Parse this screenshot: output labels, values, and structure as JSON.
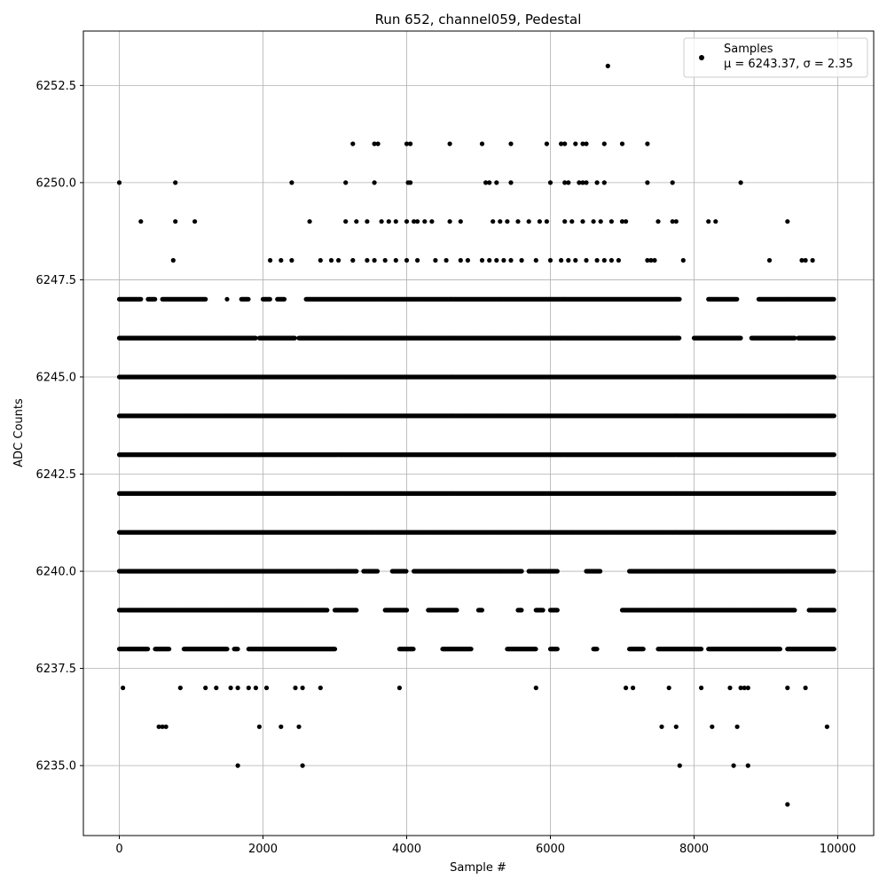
{
  "chart_data": {
    "type": "scatter",
    "title": "Run 652, channel059, Pedestal",
    "xlabel": "Sample #",
    "ylabel": "ADC Counts",
    "xlim": [
      -500,
      10500
    ],
    "ylim": [
      6233.2,
      6253.9
    ],
    "x_ticks": [
      0,
      2000,
      4000,
      6000,
      8000,
      10000
    ],
    "x_tick_labels": [
      "0",
      "2000",
      "4000",
      "6000",
      "8000",
      "10000"
    ],
    "y_ticks": [
      6235.0,
      6237.5,
      6240.0,
      6242.5,
      6245.0,
      6247.5,
      6250.0,
      6252.5
    ],
    "y_tick_labels": [
      "6235.0",
      "6237.5",
      "6240.0",
      "6242.5",
      "6245.0",
      "6247.5",
      "6250.0",
      "6252.5"
    ],
    "grid": true,
    "legend": {
      "placement": "top-right",
      "entries": [
        {
          "name": "Samples",
          "stats_text": "μ = 6243.37, σ = 2.35"
        }
      ]
    },
    "series": [
      {
        "name": "Samples",
        "color": "#000000",
        "marker": "circle",
        "x_range": [
          0,
          9950
        ],
        "bands": [
          {
            "y": 6247,
            "segments": [
              [
                0,
                300
              ],
              [
                400,
                500
              ],
              [
                600,
                1200
              ],
              [
                1500,
                1500
              ],
              [
                1700,
                1800
              ],
              [
                2000,
                2100
              ],
              [
                2200,
                2300
              ],
              [
                2600,
                7800
              ],
              [
                8200,
                8600
              ],
              [
                8900,
                9950
              ]
            ]
          },
          {
            "y": 6246,
            "segments": [
              [
                0,
                1900
              ],
              [
                1950,
                2450
              ],
              [
                2500,
                7800
              ],
              [
                8000,
                8650
              ],
              [
                8800,
                9400
              ],
              [
                9450,
                9950
              ]
            ]
          },
          {
            "y": 6245,
            "segments": [
              [
                0,
                9950
              ]
            ]
          },
          {
            "y": 6244,
            "segments": [
              [
                0,
                9950
              ]
            ]
          },
          {
            "y": 6243,
            "segments": [
              [
                0,
                9950
              ]
            ]
          },
          {
            "y": 6242,
            "segments": [
              [
                0,
                9950
              ]
            ]
          },
          {
            "y": 6241,
            "segments": [
              [
                0,
                9950
              ]
            ]
          },
          {
            "y": 6240,
            "segments": [
              [
                0,
                3300
              ],
              [
                3400,
                3600
              ],
              [
                3800,
                4000
              ],
              [
                4100,
                5600
              ],
              [
                5700,
                6100
              ],
              [
                6500,
                6700
              ],
              [
                7100,
                9950
              ]
            ]
          },
          {
            "y": 6239,
            "segments": [
              [
                0,
                2900
              ],
              [
                3000,
                3300
              ],
              [
                3700,
                4000
              ],
              [
                4300,
                4700
              ],
              [
                5000,
                5050
              ],
              [
                5550,
                5600
              ],
              [
                5800,
                5900
              ],
              [
                6000,
                6100
              ],
              [
                7000,
                9400
              ],
              [
                9600,
                9950
              ]
            ]
          },
          {
            "y": 6238,
            "segments": [
              [
                0,
                400
              ],
              [
                500,
                700
              ],
              [
                900,
                1500
              ],
              [
                1600,
                1650
              ],
              [
                1800,
                3000
              ],
              [
                3900,
                4100
              ],
              [
                4500,
                4900
              ],
              [
                5400,
                5800
              ],
              [
                6000,
                6100
              ],
              [
                6600,
                6650
              ],
              [
                7100,
                7300
              ],
              [
                7500,
                8100
              ],
              [
                8200,
                9200
              ],
              [
                9300,
                9950
              ]
            ]
          }
        ],
        "points": [
          [
            0,
            6250
          ],
          [
            780,
            6250
          ],
          [
            2400,
            6250
          ],
          [
            3150,
            6250
          ],
          [
            3550,
            6250
          ],
          [
            4020,
            6250
          ],
          [
            4050,
            6250
          ],
          [
            5100,
            6250
          ],
          [
            5150,
            6250
          ],
          [
            5250,
            6250
          ],
          [
            5450,
            6250
          ],
          [
            6000,
            6250
          ],
          [
            6200,
            6250
          ],
          [
            6250,
            6250
          ],
          [
            6400,
            6250
          ],
          [
            6450,
            6250
          ],
          [
            6500,
            6250
          ],
          [
            6650,
            6250
          ],
          [
            6750,
            6250
          ],
          [
            7350,
            6250
          ],
          [
            7700,
            6250
          ],
          [
            8650,
            6250
          ],
          [
            300,
            6249
          ],
          [
            780,
            6249
          ],
          [
            1050,
            6249
          ],
          [
            2650,
            6249
          ],
          [
            3150,
            6249
          ],
          [
            3300,
            6249
          ],
          [
            3450,
            6249
          ],
          [
            3650,
            6249
          ],
          [
            3750,
            6249
          ],
          [
            3850,
            6249
          ],
          [
            4000,
            6249
          ],
          [
            4100,
            6249
          ],
          [
            4150,
            6249
          ],
          [
            4250,
            6249
          ],
          [
            4350,
            6249
          ],
          [
            4600,
            6249
          ],
          [
            4750,
            6249
          ],
          [
            5200,
            6249
          ],
          [
            5300,
            6249
          ],
          [
            5400,
            6249
          ],
          [
            5550,
            6249
          ],
          [
            5700,
            6249
          ],
          [
            5850,
            6249
          ],
          [
            5950,
            6249
          ],
          [
            6200,
            6249
          ],
          [
            6300,
            6249
          ],
          [
            6450,
            6249
          ],
          [
            6600,
            6249
          ],
          [
            6700,
            6249
          ],
          [
            6850,
            6249
          ],
          [
            7000,
            6249
          ],
          [
            7050,
            6249
          ],
          [
            7500,
            6249
          ],
          [
            7700,
            6249
          ],
          [
            7750,
            6249
          ],
          [
            8200,
            6249
          ],
          [
            8300,
            6249
          ],
          [
            9300,
            6249
          ],
          [
            750,
            6248
          ],
          [
            2100,
            6248
          ],
          [
            2250,
            6248
          ],
          [
            2400,
            6248
          ],
          [
            2800,
            6248
          ],
          [
            2950,
            6248
          ],
          [
            3050,
            6248
          ],
          [
            3250,
            6248
          ],
          [
            3450,
            6248
          ],
          [
            3550,
            6248
          ],
          [
            3700,
            6248
          ],
          [
            3850,
            6248
          ],
          [
            4000,
            6248
          ],
          [
            4150,
            6248
          ],
          [
            4400,
            6248
          ],
          [
            4550,
            6248
          ],
          [
            4750,
            6248
          ],
          [
            4850,
            6248
          ],
          [
            5050,
            6248
          ],
          [
            5150,
            6248
          ],
          [
            5250,
            6248
          ],
          [
            5350,
            6248
          ],
          [
            5450,
            6248
          ],
          [
            5600,
            6248
          ],
          [
            5800,
            6248
          ],
          [
            6000,
            6248
          ],
          [
            6150,
            6248
          ],
          [
            6250,
            6248
          ],
          [
            6350,
            6248
          ],
          [
            6500,
            6248
          ],
          [
            6650,
            6248
          ],
          [
            6750,
            6248
          ],
          [
            6850,
            6248
          ],
          [
            6950,
            6248
          ],
          [
            7350,
            6248
          ],
          [
            7400,
            6248
          ],
          [
            7450,
            6248
          ],
          [
            7850,
            6248
          ],
          [
            9050,
            6248
          ],
          [
            9500,
            6248
          ],
          [
            9550,
            6248
          ],
          [
            9650,
            6248
          ],
          [
            3250,
            6251
          ],
          [
            3550,
            6251
          ],
          [
            3600,
            6251
          ],
          [
            4000,
            6251
          ],
          [
            4050,
            6251
          ],
          [
            4600,
            6251
          ],
          [
            5050,
            6251
          ],
          [
            5450,
            6251
          ],
          [
            5950,
            6251
          ],
          [
            6150,
            6251
          ],
          [
            6200,
            6251
          ],
          [
            6350,
            6251
          ],
          [
            6450,
            6251
          ],
          [
            6500,
            6251
          ],
          [
            6750,
            6251
          ],
          [
            7000,
            6251
          ],
          [
            7350,
            6251
          ],
          [
            6800,
            6253
          ],
          [
            50,
            6237
          ],
          [
            850,
            6237
          ],
          [
            1200,
            6237
          ],
          [
            1350,
            6237
          ],
          [
            1550,
            6237
          ],
          [
            1650,
            6237
          ],
          [
            1800,
            6237
          ],
          [
            1900,
            6237
          ],
          [
            2050,
            6237
          ],
          [
            2450,
            6237
          ],
          [
            2550,
            6237
          ],
          [
            2800,
            6237
          ],
          [
            3900,
            6237
          ],
          [
            5800,
            6237
          ],
          [
            7050,
            6237
          ],
          [
            7150,
            6237
          ],
          [
            7650,
            6237
          ],
          [
            8100,
            6237
          ],
          [
            8500,
            6237
          ],
          [
            8650,
            6237
          ],
          [
            8700,
            6237
          ],
          [
            8750,
            6237
          ],
          [
            9300,
            6237
          ],
          [
            9550,
            6237
          ],
          [
            550,
            6236
          ],
          [
            600,
            6236
          ],
          [
            650,
            6236
          ],
          [
            1950,
            6236
          ],
          [
            2250,
            6236
          ],
          [
            2500,
            6236
          ],
          [
            7550,
            6236
          ],
          [
            7750,
            6236
          ],
          [
            8250,
            6236
          ],
          [
            8600,
            6236
          ],
          [
            9850,
            6236
          ],
          [
            1650,
            6235
          ],
          [
            2550,
            6235
          ],
          [
            7800,
            6235
          ],
          [
            8550,
            6235
          ],
          [
            8750,
            6235
          ],
          [
            9300,
            6234
          ]
        ]
      }
    ]
  }
}
